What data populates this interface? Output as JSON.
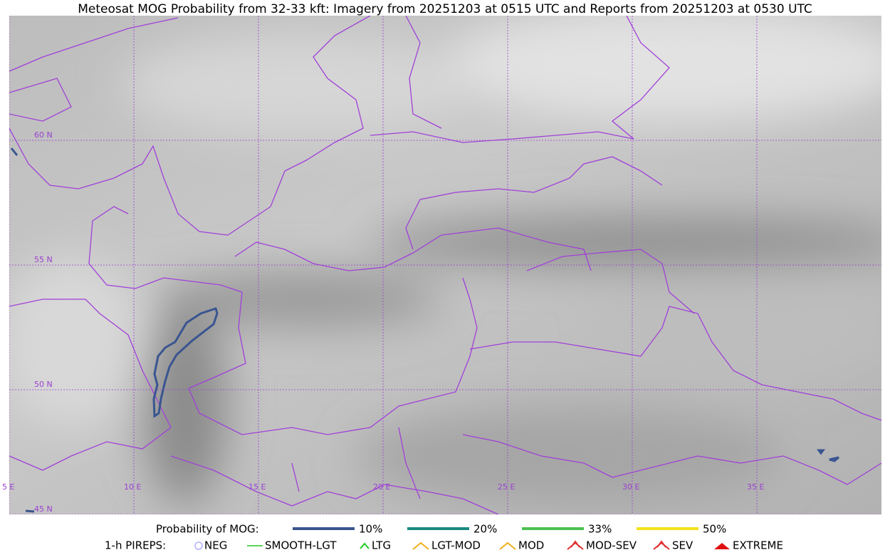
{
  "title": "Meteosat MOG Probability from 32-33 kft: Imagery from 20251203 at 0515 UTC and Reports from 20251203 at 0530 UTC",
  "map": {
    "lat_labels": [
      "60 N",
      "55 N",
      "50 N",
      "45 N"
    ],
    "lon_labels": [
      "5 E",
      "10 E",
      "15 E",
      "20 E",
      "25 E",
      "30 E",
      "35 E"
    ]
  },
  "legend": {
    "probability": {
      "label": "Probability of MOG:",
      "items": [
        "10%",
        "20%",
        "33%",
        "50%"
      ]
    },
    "pireps": {
      "label": "1-h PIREPS:",
      "items": [
        "NEG",
        "SMOOTH-LGT",
        "LTG",
        "LGT-MOD",
        "MOD",
        "MOD-SEV",
        "SEV",
        "EXTREME"
      ]
    }
  }
}
